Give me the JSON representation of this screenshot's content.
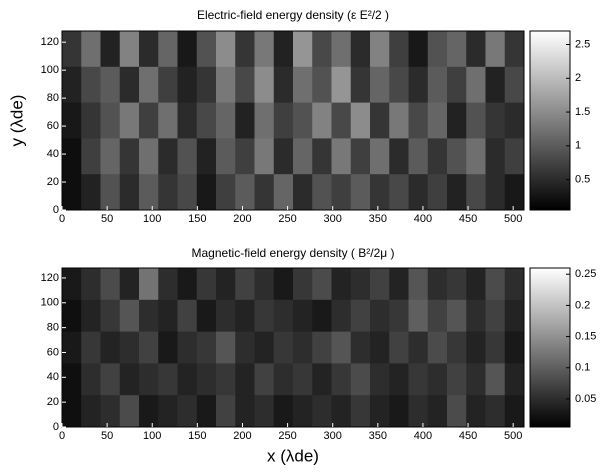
{
  "chart_data": [
    {
      "type": "heatmap",
      "title": "Electric-field energy density (ε E²/2 )",
      "ylabel": "y (λde)",
      "xlim": [
        0,
        512
      ],
      "ylim": [
        0,
        128
      ],
      "xticks": [
        0,
        50,
        100,
        150,
        200,
        250,
        300,
        350,
        400,
        450,
        500
      ],
      "yticks": [
        0,
        20,
        40,
        60,
        80,
        100,
        120
      ],
      "colormap": "gray",
      "clim": [
        0.05,
        2.7
      ],
      "cticks": [
        0.5,
        1,
        1.5,
        2,
        2.5
      ],
      "z": [
        [
          0.6,
          1.2,
          0.4,
          1.4,
          0.5,
          1.1,
          0.3,
          0.9,
          1.5,
          0.6,
          1.3,
          0.4,
          1.6,
          0.8,
          1.2,
          0.5,
          1.4,
          0.7,
          0.3,
          0.9,
          1.1,
          0.5,
          1.3,
          0.6
        ],
        [
          0.4,
          0.8,
          1.0,
          0.5,
          1.2,
          0.7,
          0.4,
          0.6,
          1.3,
          0.8,
          1.5,
          0.5,
          1.2,
          0.9,
          1.6,
          0.6,
          1.1,
          0.8,
          0.5,
          1.0,
          0.7,
          1.2,
          0.4,
          0.8
        ],
        [
          0.3,
          0.6,
          0.9,
          1.3,
          0.7,
          1.2,
          0.5,
          0.8,
          1.1,
          0.4,
          1.2,
          0.7,
          0.9,
          1.4,
          0.8,
          1.5,
          0.6,
          1.3,
          0.8,
          1.1,
          0.4,
          0.9,
          0.6,
          0.5
        ],
        [
          0.2,
          0.7,
          1.1,
          0.6,
          1.2,
          0.5,
          0.9,
          0.4,
          1.0,
          0.7,
          1.3,
          0.5,
          1.1,
          0.6,
          1.3,
          0.7,
          1.2,
          0.5,
          1.0,
          0.6,
          0.9,
          1.2,
          0.5,
          0.7
        ],
        [
          0.2,
          0.4,
          0.9,
          0.5,
          1.0,
          0.6,
          0.8,
          0.3,
          0.7,
          1.0,
          0.6,
          1.1,
          0.5,
          0.9,
          0.7,
          1.0,
          0.6,
          0.8,
          0.5,
          0.7,
          0.4,
          0.8,
          0.5,
          0.3
        ]
      ]
    },
    {
      "type": "heatmap",
      "title": "Magnetic-field energy density ( B²/2μ )",
      "xlabel": "x (λde)",
      "xlim": [
        0,
        512
      ],
      "ylim": [
        0,
        128
      ],
      "xticks": [
        0,
        50,
        100,
        150,
        200,
        250,
        300,
        350,
        400,
        450,
        500
      ],
      "yticks": [
        0,
        20,
        40,
        60,
        80,
        100,
        120
      ],
      "colormap": "gray",
      "clim": [
        0.005,
        0.26
      ],
      "cticks": [
        0.05,
        0.1,
        0.15,
        0.2,
        0.25
      ],
      "z": [
        [
          0.03,
          0.05,
          0.08,
          0.04,
          0.12,
          0.05,
          0.03,
          0.06,
          0.04,
          0.07,
          0.05,
          0.03,
          0.06,
          0.08,
          0.04,
          0.05,
          0.07,
          0.04,
          0.09,
          0.05,
          0.06,
          0.04,
          0.08,
          0.05
        ],
        [
          0.02,
          0.04,
          0.06,
          0.09,
          0.05,
          0.04,
          0.07,
          0.03,
          0.05,
          0.04,
          0.06,
          0.05,
          0.04,
          0.03,
          0.05,
          0.07,
          0.05,
          0.06,
          0.1,
          0.07,
          0.09,
          0.05,
          0.07,
          0.04
        ],
        [
          0.03,
          0.06,
          0.04,
          0.05,
          0.07,
          0.03,
          0.05,
          0.06,
          0.09,
          0.05,
          0.04,
          0.06,
          0.05,
          0.07,
          0.09,
          0.05,
          0.04,
          0.07,
          0.05,
          0.08,
          0.06,
          0.04,
          0.06,
          0.03
        ],
        [
          0.02,
          0.05,
          0.07,
          0.04,
          0.05,
          0.06,
          0.04,
          0.05,
          0.06,
          0.04,
          0.07,
          0.05,
          0.06,
          0.04,
          0.06,
          0.08,
          0.05,
          0.04,
          0.06,
          0.05,
          0.07,
          0.05,
          0.09,
          0.04
        ],
        [
          0.02,
          0.04,
          0.05,
          0.08,
          0.03,
          0.04,
          0.05,
          0.03,
          0.07,
          0.04,
          0.05,
          0.03,
          0.04,
          0.05,
          0.04,
          0.06,
          0.04,
          0.03,
          0.05,
          0.04,
          0.08,
          0.04,
          0.05,
          0.03
        ]
      ]
    }
  ]
}
